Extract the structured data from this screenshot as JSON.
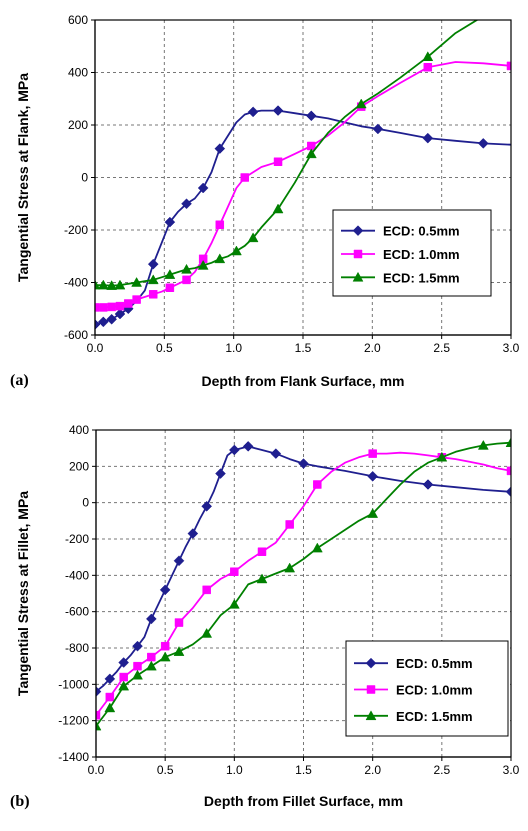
{
  "chart_data": [
    {
      "id": "a",
      "type": "line",
      "panel_label": "(a)",
      "xlabel": "Depth from Flank Surface, mm",
      "ylabel": "Tangential Stress at Flank, MPa",
      "xlim": [
        0,
        3.0
      ],
      "ylim": [
        -600,
        600
      ],
      "xticks": [
        "0.0",
        "0.5",
        "1.0",
        "1.5",
        "2.0",
        "2.5",
        "3.0"
      ],
      "yticks": [
        "-600",
        "-400",
        "-200",
        "0",
        "200",
        "400",
        "600"
      ],
      "grid": true,
      "legend_position": "bottom-right",
      "series": [
        {
          "name": "ECD: 0.5mm",
          "color": "#1f1f8f",
          "marker": "diamond",
          "x": [
            0.0,
            0.06,
            0.12,
            0.18,
            0.24,
            0.3,
            0.36,
            0.42,
            0.48,
            0.54,
            0.6,
            0.66,
            0.72,
            0.78,
            0.84,
            0.9,
            0.96,
            1.02,
            1.08,
            1.14,
            1.2,
            1.32,
            1.44,
            1.56,
            1.68,
            1.8,
            1.92,
            2.04,
            2.2,
            2.4,
            2.6,
            2.8,
            3.0
          ],
          "y": [
            -560,
            -550,
            -540,
            -520,
            -500,
            -470,
            -430,
            -330,
            -250,
            -170,
            -130,
            -100,
            -80,
            -40,
            20,
            110,
            160,
            210,
            240,
            250,
            255,
            255,
            245,
            235,
            225,
            210,
            195,
            185,
            170,
            150,
            140,
            130,
            125
          ],
          "marker_index": [
            0,
            1,
            2,
            3,
            4,
            7,
            9,
            11,
            13,
            15,
            19,
            21,
            23,
            27,
            29,
            31
          ]
        },
        {
          "name": "ECD: 1.0mm",
          "color": "#ff00ff",
          "marker": "square",
          "x": [
            0.0,
            0.06,
            0.12,
            0.18,
            0.24,
            0.3,
            0.36,
            0.42,
            0.48,
            0.54,
            0.6,
            0.66,
            0.72,
            0.78,
            0.84,
            0.9,
            0.96,
            1.02,
            1.08,
            1.14,
            1.2,
            1.32,
            1.44,
            1.56,
            1.68,
            1.8,
            1.92,
            2.04,
            2.2,
            2.4,
            2.6,
            2.8,
            3.0
          ],
          "y": [
            -495,
            -495,
            -493,
            -490,
            -480,
            -465,
            -455,
            -445,
            -435,
            -420,
            -405,
            -390,
            -360,
            -310,
            -250,
            -180,
            -110,
            -40,
            0,
            20,
            40,
            60,
            90,
            120,
            160,
            210,
            270,
            310,
            360,
            420,
            440,
            435,
            425
          ],
          "marker_index": [
            0,
            1,
            2,
            3,
            4,
            5,
            7,
            9,
            11,
            13,
            15,
            18,
            21,
            23,
            26,
            29,
            32
          ]
        },
        {
          "name": "ECD: 1.5mm",
          "color": "#008000",
          "marker": "triangle",
          "x": [
            0.0,
            0.06,
            0.12,
            0.18,
            0.24,
            0.3,
            0.36,
            0.42,
            0.48,
            0.54,
            0.6,
            0.66,
            0.72,
            0.78,
            0.84,
            0.9,
            0.96,
            1.02,
            1.08,
            1.14,
            1.2,
            1.32,
            1.44,
            1.56,
            1.68,
            1.8,
            1.92,
            2.04,
            2.2,
            2.4,
            2.6,
            2.8
          ],
          "y": [
            -410,
            -410,
            -412,
            -410,
            -405,
            -400,
            -395,
            -390,
            -380,
            -370,
            -360,
            -350,
            -345,
            -335,
            -325,
            -310,
            -300,
            -280,
            -260,
            -230,
            -190,
            -120,
            -20,
            90,
            170,
            230,
            280,
            320,
            380,
            460,
            550,
            615
          ],
          "marker_index": [
            0,
            1,
            2,
            3,
            5,
            7,
            9,
            11,
            13,
            15,
            17,
            19,
            21,
            23,
            26,
            29
          ]
        }
      ]
    },
    {
      "id": "b",
      "type": "line",
      "panel_label": "(b)",
      "xlabel": "Depth from Fillet Surface, mm",
      "ylabel": "Tangential Stress at Fillet, MPa",
      "xlim": [
        0,
        3.0
      ],
      "ylim": [
        -1400,
        400
      ],
      "xticks": [
        "0.0",
        "0.5",
        "1.0",
        "1.5",
        "2.0",
        "2.5",
        "3.0"
      ],
      "yticks": [
        "-1400",
        "-1200",
        "-1000",
        "-800",
        "-600",
        "-400",
        "-200",
        "0",
        "200",
        "400"
      ],
      "grid": true,
      "legend_position": "bottom-right",
      "series": [
        {
          "name": "ECD: 0.5mm",
          "color": "#1f1f8f",
          "marker": "diamond",
          "x": [
            0.0,
            0.05,
            0.1,
            0.15,
            0.2,
            0.25,
            0.3,
            0.35,
            0.4,
            0.45,
            0.5,
            0.55,
            0.6,
            0.65,
            0.7,
            0.75,
            0.8,
            0.85,
            0.9,
            0.95,
            1.0,
            1.05,
            1.1,
            1.15,
            1.2,
            1.3,
            1.4,
            1.5,
            1.6,
            1.8,
            2.0,
            2.2,
            2.4,
            2.6,
            2.8,
            3.0
          ],
          "y": [
            -1040,
            -1010,
            -970,
            -930,
            -880,
            -840,
            -790,
            -740,
            -640,
            -560,
            -480,
            -400,
            -320,
            -240,
            -170,
            -90,
            -20,
            60,
            160,
            260,
            290,
            300,
            310,
            300,
            290,
            270,
            240,
            215,
            200,
            175,
            145,
            120,
            100,
            85,
            70,
            60
          ],
          "marker_index": [
            0,
            2,
            4,
            6,
            8,
            10,
            12,
            14,
            16,
            18,
            20,
            22,
            25,
            27,
            30,
            32,
            35
          ]
        },
        {
          "name": "ECD: 1.0mm",
          "color": "#ff00ff",
          "marker": "square",
          "x": [
            0.0,
            0.1,
            0.2,
            0.3,
            0.4,
            0.5,
            0.6,
            0.7,
            0.8,
            0.9,
            1.0,
            1.1,
            1.2,
            1.3,
            1.4,
            1.5,
            1.6,
            1.7,
            1.8,
            1.9,
            2.0,
            2.1,
            2.2,
            2.3,
            2.4,
            2.5,
            2.6,
            2.7,
            2.8,
            2.9,
            3.0
          ],
          "y": [
            -1170,
            -1070,
            -960,
            -900,
            -850,
            -790,
            -660,
            -580,
            -480,
            -420,
            -380,
            -320,
            -270,
            -220,
            -120,
            -20,
            100,
            170,
            220,
            250,
            270,
            270,
            275,
            270,
            260,
            250,
            240,
            225,
            210,
            190,
            175
          ],
          "marker_index": [
            0,
            1,
            2,
            3,
            4,
            5,
            6,
            8,
            10,
            12,
            14,
            16,
            20,
            25,
            30
          ]
        },
        {
          "name": "ECD: 1.5mm",
          "color": "#008000",
          "marker": "triangle",
          "x": [
            0.0,
            0.1,
            0.2,
            0.3,
            0.4,
            0.5,
            0.6,
            0.7,
            0.8,
            0.9,
            1.0,
            1.1,
            1.2,
            1.3,
            1.4,
            1.5,
            1.6,
            1.7,
            1.8,
            1.9,
            2.0,
            2.1,
            2.2,
            2.3,
            2.4,
            2.5,
            2.6,
            2.7,
            2.8,
            2.9,
            3.0
          ],
          "y": [
            -1230,
            -1130,
            -1010,
            -950,
            -900,
            -850,
            -820,
            -780,
            -720,
            -620,
            -560,
            -450,
            -420,
            -390,
            -360,
            -310,
            -250,
            -200,
            -150,
            -100,
            -60,
            20,
            100,
            170,
            220,
            250,
            280,
            300,
            315,
            325,
            330
          ],
          "marker_index": [
            0,
            1,
            2,
            3,
            4,
            5,
            6,
            8,
            10,
            12,
            14,
            16,
            20,
            25,
            28,
            30
          ]
        }
      ]
    }
  ]
}
